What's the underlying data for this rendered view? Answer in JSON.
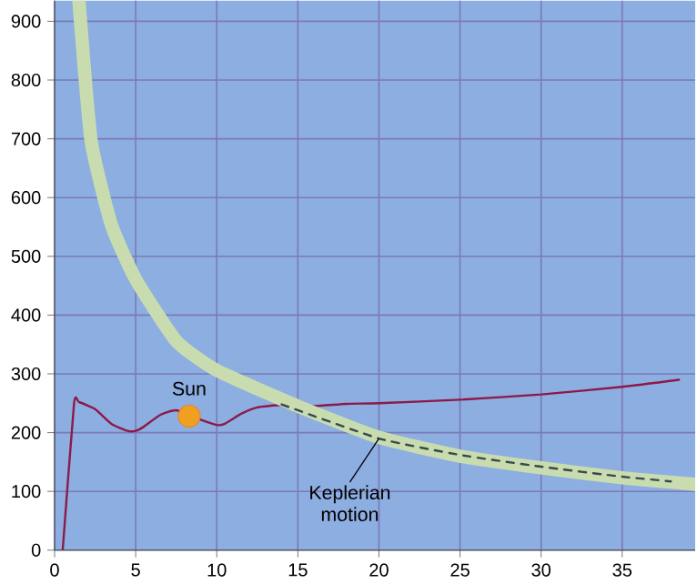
{
  "chart_data": {
    "type": "line",
    "xlim": [
      0,
      39.5
    ],
    "ylim": [
      0,
      935
    ],
    "xticks": [
      0,
      5,
      10,
      15,
      20,
      25,
      30,
      35
    ],
    "yticks": [
      0,
      100,
      200,
      300,
      400,
      500,
      600,
      700,
      800,
      900
    ],
    "grid": true,
    "series": [
      {
        "color": "#8b1a4a",
        "x": [
          0.5,
          1.2,
          1.5,
          2.5,
          3.5,
          4.5,
          5,
          5.5,
          6.5,
          7.5,
          8.5,
          9,
          10,
          10.5,
          11.5,
          12.5,
          14,
          16,
          18,
          20,
          25,
          30,
          35,
          38.5
        ],
        "values": [
          0,
          250,
          252,
          240,
          215,
          203,
          203,
          210,
          230,
          238,
          null,
          222,
          213,
          215,
          232,
          243,
          247,
          245,
          249,
          250,
          256,
          265,
          278,
          290
        ]
      },
      {
        "color": "#c8dcb0",
        "x": [
          1.5,
          2.25,
          3.5,
          5,
          7.5,
          10,
          15,
          20,
          25,
          30,
          35,
          39.5
        ],
        "values": [
          935,
          697,
          554,
          461,
          356,
          306,
          245,
          192,
          160,
          140,
          123,
          112
        ]
      },
      {
        "color": "#3a4a4a",
        "line_style": "dashed",
        "x": [
          14,
          20,
          25,
          30,
          35,
          38
        ],
        "values": [
          248,
          190,
          162,
          142,
          125,
          117
        ]
      },
      {
        "type": "scatter",
        "name": "Sun",
        "color": "#f0a020",
        "x": [
          8.3
        ],
        "values": [
          228
        ]
      }
    ],
    "annotations": [
      {
        "text": "Keplerian motion",
        "x": 20,
        "y": 190
      }
    ]
  }
}
